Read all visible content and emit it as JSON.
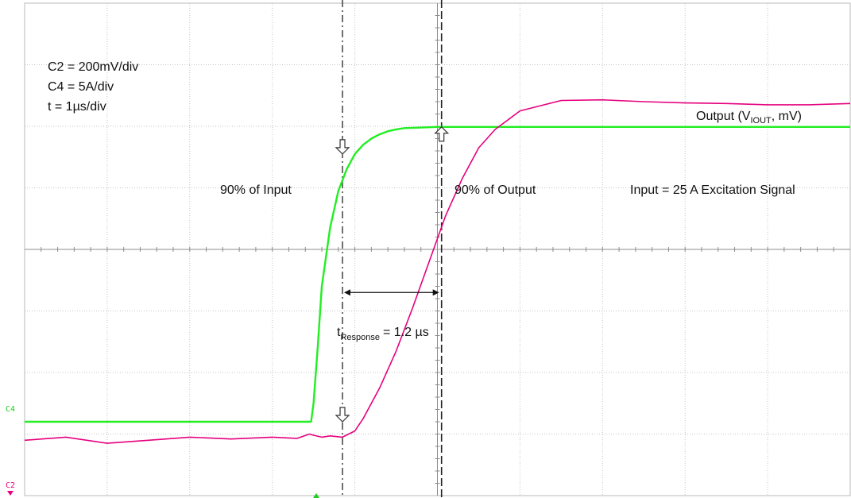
{
  "chart_data": {
    "type": "line",
    "settings": [
      "C2 = 200mV/div",
      "C4 = 5A/div",
      "t = 1µs/div"
    ],
    "channel_markers": {
      "c4": "C4",
      "c2": "C2"
    },
    "x_unit": "µs",
    "xlim": [
      0,
      10
    ],
    "ylim": [
      -4,
      4
    ],
    "series": [
      {
        "name": "Input = 25 A Excitation Signal",
        "channel": "C4",
        "color": "#22ee22",
        "x": [
          0,
          2,
          3.0,
          3.47,
          3.5,
          3.55,
          3.6,
          3.7,
          3.8,
          3.9,
          4.0,
          4.1,
          4.2,
          4.3,
          4.4,
          4.5,
          4.6,
          4.8,
          5.0,
          5.5,
          6.0,
          7.0,
          8.0,
          9.0,
          10.0
        ],
        "y": [
          -2.8,
          -2.8,
          -2.8,
          -2.8,
          -2.5,
          -1.6,
          -0.6,
          0.35,
          0.95,
          1.3,
          1.55,
          1.7,
          1.8,
          1.87,
          1.92,
          1.95,
          1.97,
          1.98,
          1.99,
          1.99,
          1.99,
          1.99,
          1.99,
          1.99,
          1.99
        ]
      },
      {
        "name": "Output (V_IOUT, mV)",
        "channel": "C2",
        "color": "#e6007e",
        "x": [
          0,
          0.5,
          1.0,
          1.5,
          2.0,
          2.5,
          3.0,
          3.3,
          3.45,
          3.5,
          3.6,
          3.7,
          3.85,
          4.0,
          4.1,
          4.3,
          4.5,
          4.7,
          4.9,
          5.1,
          5.3,
          5.5,
          5.7,
          6.0,
          6.5,
          7.0,
          7.5,
          8.0,
          8.5,
          9.0,
          9.5,
          10.0
        ],
        "y": [
          -3.1,
          -3.05,
          -3.15,
          -3.1,
          -3.05,
          -3.08,
          -3.05,
          -3.07,
          -3.0,
          -3.02,
          -3.05,
          -3.03,
          -3.05,
          -2.95,
          -2.75,
          -2.25,
          -1.65,
          -0.95,
          -0.2,
          0.55,
          1.15,
          1.65,
          1.95,
          2.25,
          2.42,
          2.43,
          2.4,
          2.38,
          2.37,
          2.35,
          2.35,
          2.37
        ]
      }
    ],
    "cursors": [
      {
        "label": "90% of Input",
        "x": 3.85,
        "style": "dash-dot"
      },
      {
        "label": "90% of Output",
        "x": 5.05,
        "style": "dashed"
      }
    ],
    "measurement": {
      "prefix": "t",
      "subscript": "Response",
      "value": "= 1.2 µs"
    },
    "output_label": {
      "text": "Output (V",
      "subscript": "IOUT",
      "suffix": ", mV)"
    }
  }
}
